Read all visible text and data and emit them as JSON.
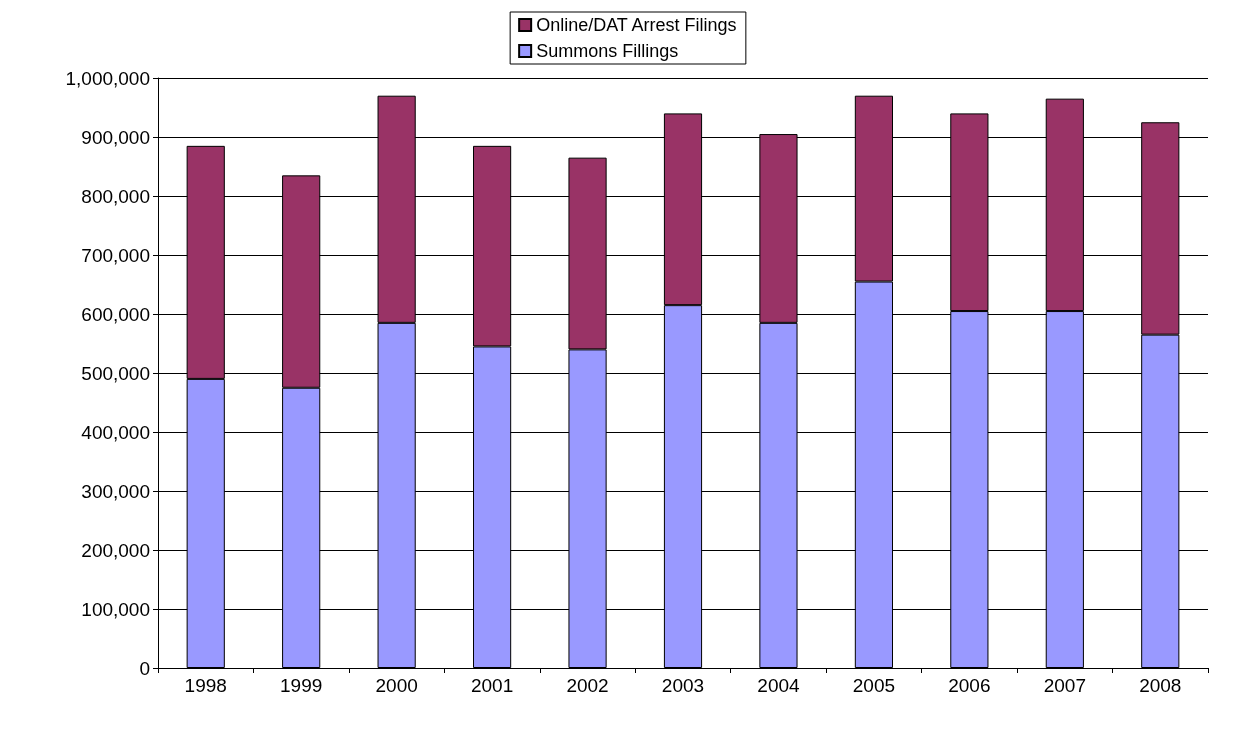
{
  "chart_data": {
    "type": "bar",
    "stacked": true,
    "categories": [
      "1998",
      "1999",
      "2000",
      "2001",
      "2002",
      "2003",
      "2004",
      "2005",
      "2006",
      "2007",
      "2008"
    ],
    "series": [
      {
        "name": "Summons Fillings",
        "color": "#9999ff",
        "values": [
          490000,
          475000,
          585000,
          545000,
          540000,
          615000,
          585000,
          655000,
          605000,
          605000,
          565000
        ]
      },
      {
        "name": "Online/DAT Arrest Filings",
        "color": "#993366",
        "values": [
          395000,
          360000,
          385000,
          340000,
          325000,
          325000,
          320000,
          315000,
          335000,
          360000,
          360000
        ]
      }
    ],
    "ylim": [
      0,
      1000000
    ],
    "yticks": [
      {
        "value": 0,
        "label": "0"
      },
      {
        "value": 100000,
        "label": "100,000"
      },
      {
        "value": 200000,
        "label": "200,000"
      },
      {
        "value": 300000,
        "label": "300,000"
      },
      {
        "value": 400000,
        "label": "400,000"
      },
      {
        "value": 500000,
        "label": "500,000"
      },
      {
        "value": 600000,
        "label": "600,000"
      },
      {
        "value": 700000,
        "label": "700,000"
      },
      {
        "value": 800000,
        "label": "800,000"
      },
      {
        "value": 900000,
        "label": "900,000"
      },
      {
        "value": 1000000,
        "label": "1,000,000"
      }
    ],
    "grid": "y",
    "legend": "top"
  }
}
